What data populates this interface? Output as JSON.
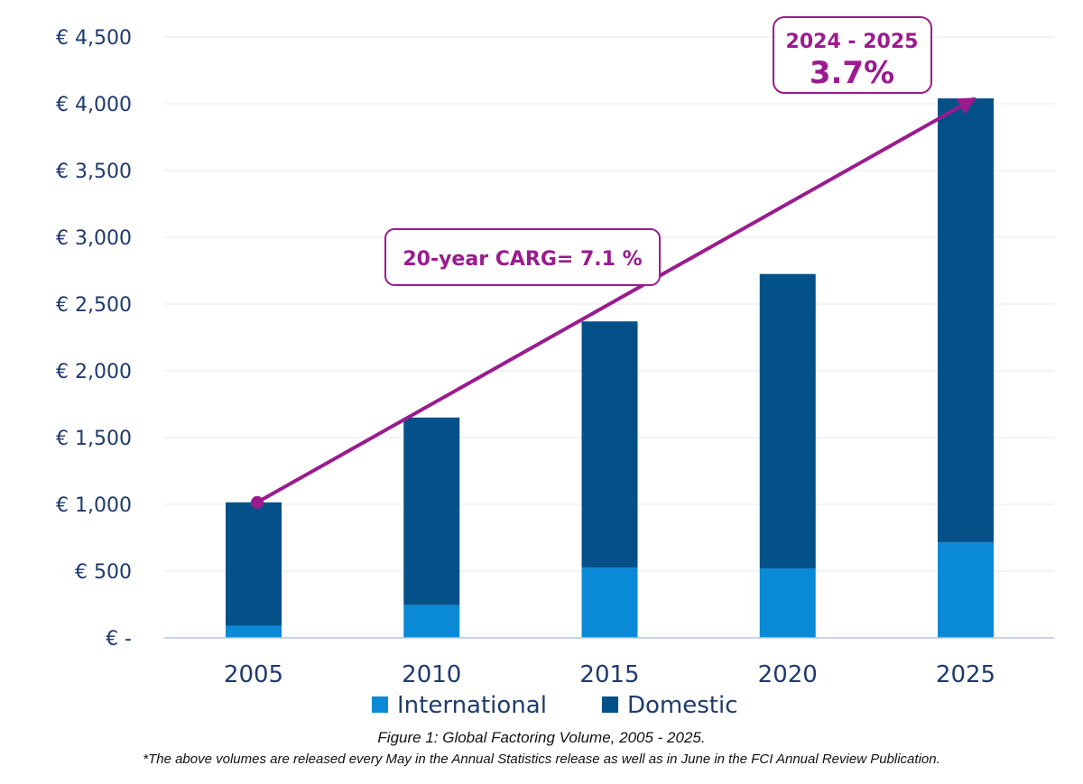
{
  "chart_data": {
    "type": "bar",
    "stacked": true,
    "categories": [
      "2005",
      "2010",
      "2015",
      "2020",
      "2025"
    ],
    "series": [
      {
        "name": "International",
        "values": [
          90,
          245,
          525,
          520,
          715
        ],
        "color": "#0a8ad6"
      },
      {
        "name": "Domestic",
        "values": [
          925,
          1405,
          1845,
          2205,
          3325
        ],
        "color": "#035188"
      }
    ],
    "ylim": [
      0,
      4500
    ],
    "yticks": [
      0,
      500,
      1000,
      1500,
      2000,
      2500,
      3000,
      3500,
      4000,
      4500
    ],
    "ytick_labels": [
      "€ -",
      "€ 500",
      "€ 1,000",
      "€ 1,500",
      "€ 2,000",
      "€ 2,500",
      "€ 3,000",
      "€ 3,500",
      "€ 4,000",
      "€ 4,500"
    ],
    "grid": true,
    "legend_position": "bottom",
    "annotations": {
      "trend_start": {
        "x": "2005",
        "y": 1015
      },
      "trend_end": {
        "x": "2025",
        "y": 4040
      },
      "cagr_label": "20-year CARG= 7.1 %",
      "growth_period": "2024 - 2025",
      "growth_value": "3.7%",
      "color": "#9b1b8f"
    },
    "caption": "Figure 1: Global Factoring Volume, 2005 - 2025.",
    "note": "*The above volumes are released every May in the Annual Statistics release as well as in June in the FCI Annual Review Publication."
  }
}
